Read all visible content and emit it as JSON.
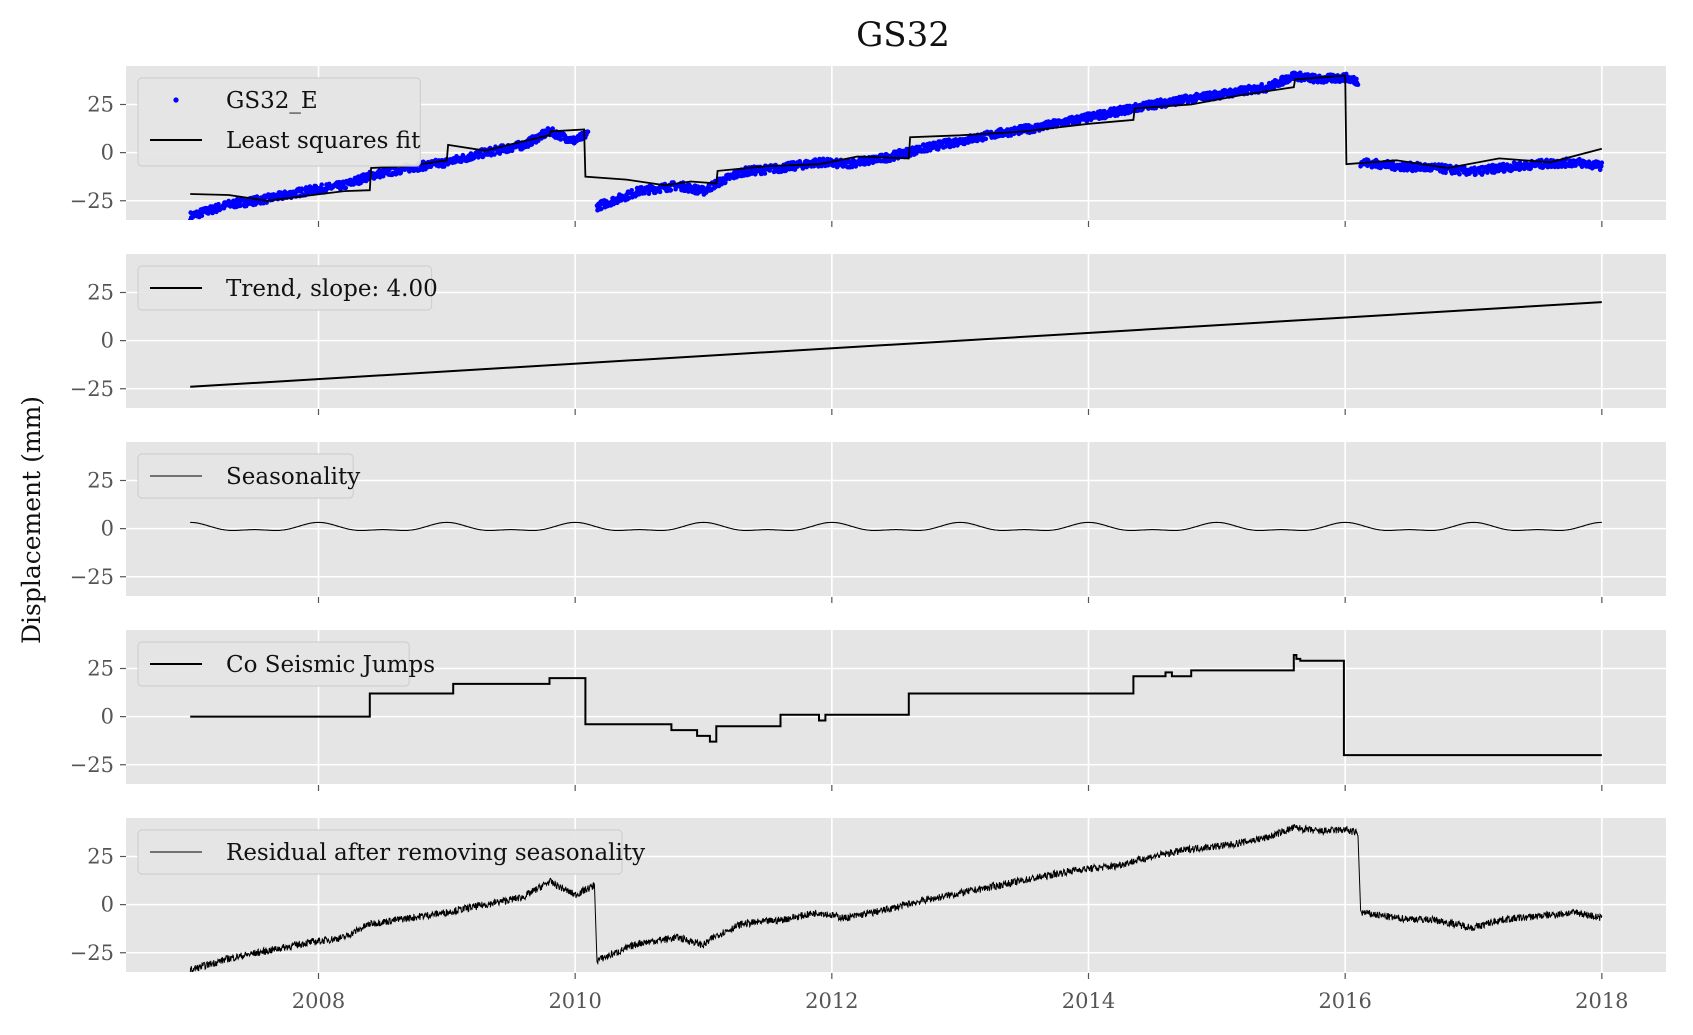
{
  "figure": {
    "title": "GS32",
    "ylabel": "Displacement (mm)",
    "xticks": [
      "2008",
      "2010",
      "2012",
      "2014",
      "2016",
      "2018"
    ],
    "yticks": [
      "25",
      "0",
      "−25"
    ],
    "colors": {
      "panel_background": "#e5e5e5",
      "grid": "#ffffff",
      "observations": "#0000ff",
      "line": "#000000"
    }
  },
  "chart_data": [
    {
      "type": "scatter",
      "name": "observations-fit",
      "xlim": [
        2006.5,
        2018.5
      ],
      "ylim": [
        -35,
        45
      ],
      "grid": true,
      "legend_placement": "upper-left",
      "series": [
        {
          "name": "GS32_E",
          "kind": "scatter",
          "segments": [
            {
              "x": [
                2007.0,
                2007.3,
                2007.6,
                2007.9,
                2008.2,
                2008.4,
                2008.7,
                2009.0,
                2009.3,
                2009.6,
                2009.8,
                2010.0,
                2010.1
              ],
              "y": [
                -33,
                -27,
                -24,
                -20,
                -17,
                -12,
                -8,
                -5,
                0,
                4,
                11,
                6,
                10
              ]
            },
            {
              "x": [
                2010.17,
                2010.5,
                2010.8,
                2011.0,
                2011.1,
                2011.3,
                2011.6,
                2011.9,
                2012.1,
                2012.4,
                2012.7,
                2013.0,
                2013.3,
                2013.6,
                2013.9,
                2014.2,
                2014.5,
                2014.8,
                2015.1,
                2015.4,
                2015.6,
                2015.8,
                2016.0,
                2016.1
              ],
              "y": [
                -28,
                -20,
                -17,
                -20,
                -16,
                -10,
                -8,
                -5,
                -6,
                -3,
                2,
                6,
                10,
                13,
                17,
                21,
                25,
                28,
                31,
                34,
                40,
                38,
                39,
                37
              ]
            },
            {
              "x": [
                2016.12,
                2016.4,
                2016.7,
                2017.0,
                2017.2,
                2017.5,
                2017.8,
                2018.0
              ],
              "y": [
                -5,
                -7,
                -8,
                -10,
                -8,
                -6,
                -5,
                -7
              ]
            }
          ]
        },
        {
          "name": "Least squares fit",
          "kind": "line",
          "x": [
            2007.0,
            2007.3,
            2007.6,
            2007.9,
            2008.2,
            2008.4,
            2008.41,
            2008.7,
            2009.0,
            2009.01,
            2009.3,
            2009.6,
            2009.8,
            2009.81,
            2010.07,
            2010.08,
            2010.4,
            2010.7,
            2010.9,
            2011.1,
            2011.11,
            2011.5,
            2011.9,
            2012.2,
            2012.6,
            2012.61,
            2013.0,
            2013.5,
            2014.0,
            2014.35,
            2014.36,
            2014.8,
            2015.2,
            2015.6,
            2015.61,
            2016.0,
            2016.01,
            2016.4,
            2016.8,
            2017.2,
            2017.6,
            2018.0
          ],
          "y": [
            -21.5,
            -22,
            -25,
            -22.5,
            -20,
            -19.5,
            -8,
            -7,
            -4,
            4,
            1,
            6,
            9,
            11,
            12,
            -12.5,
            -14,
            -17,
            -15,
            -16,
            -9.5,
            -7,
            -6,
            -2,
            -3,
            8,
            9,
            11,
            15,
            17,
            23,
            25,
            30,
            34,
            38,
            40,
            -6,
            -4,
            -8,
            -3,
            -5,
            2
          ]
        }
      ]
    },
    {
      "type": "line",
      "name": "trend",
      "xlim": [
        2006.5,
        2018.5
      ],
      "ylim": [
        -35,
        45
      ],
      "grid": true,
      "legend_placement": "upper-left",
      "series": [
        {
          "name": "Trend, slope: 4.00",
          "x": [
            2007.0,
            2018.0
          ],
          "y": [
            -24,
            20
          ]
        }
      ]
    },
    {
      "type": "line",
      "name": "seasonality",
      "xlim": [
        2006.5,
        2018.5
      ],
      "ylim": [
        -35,
        45
      ],
      "grid": true,
      "legend_placement": "upper-left",
      "series": [
        {
          "name": "Seasonality",
          "function": "periodic",
          "x_start": 2007.0,
          "x_end": 2018.0,
          "period_years": 1,
          "peak": 3,
          "trough": -2
        }
      ]
    },
    {
      "type": "line",
      "name": "co-seismic-jumps",
      "xlim": [
        2006.5,
        2018.5
      ],
      "ylim": [
        -35,
        45
      ],
      "grid": true,
      "legend_placement": "upper-left",
      "series": [
        {
          "name": "Co Seismic Jumps",
          "step": true,
          "x": [
            2007.0,
            2008.4,
            2009.05,
            2009.8,
            2010.08,
            2010.75,
            2010.95,
            2011.05,
            2011.1,
            2011.6,
            2011.9,
            2011.95,
            2012.6,
            2014.35,
            2014.6,
            2014.65,
            2014.8,
            2015.6,
            2015.62,
            2015.65,
            2015.99,
            2018.0
          ],
          "y": [
            0,
            12,
            17,
            20,
            -4,
            -7,
            -10,
            -13,
            -5,
            1,
            -2,
            1,
            12,
            21,
            23,
            21,
            24,
            32,
            30,
            29,
            -20,
            -20
          ]
        }
      ]
    },
    {
      "type": "line",
      "name": "residual",
      "xlim": [
        2006.5,
        2018.5
      ],
      "ylim": [
        -35,
        45
      ],
      "grid": true,
      "legend_placement": "upper-left",
      "series": [
        {
          "name": "Residual after removing seasonality",
          "segments": [
            {
              "x": [
                2007.0,
                2007.3,
                2007.6,
                2007.9,
                2008.2,
                2008.4,
                2008.7,
                2009.0,
                2009.3,
                2009.6,
                2009.8,
                2010.0,
                2010.15
              ],
              "y": [
                -34,
                -28,
                -24,
                -20,
                -17,
                -10,
                -7,
                -4,
                0,
                4,
                12,
                5,
                10
              ]
            },
            {
              "x": [
                2010.17,
                2010.5,
                2010.8,
                2011.0,
                2011.1,
                2011.3,
                2011.6,
                2011.9,
                2012.1,
                2012.4,
                2012.7,
                2013.0,
                2013.3,
                2013.6,
                2013.9,
                2014.2,
                2014.5,
                2014.8,
                2015.1,
                2015.4,
                2015.6,
                2015.8,
                2016.0,
                2016.1
              ],
              "y": [
                -29,
                -20,
                -17,
                -21,
                -16,
                -10,
                -8,
                -4,
                -7,
                -3,
                2,
                6,
                10,
                14,
                18,
                20,
                25,
                29,
                31,
                35,
                40,
                38,
                39,
                37
              ]
            },
            {
              "x": [
                2016.12,
                2016.4,
                2016.7,
                2017.0,
                2017.2,
                2017.5,
                2017.8,
                2018.0
              ],
              "y": [
                -4,
                -7,
                -8,
                -12,
                -8,
                -6,
                -4,
                -7
              ]
            }
          ]
        }
      ]
    }
  ]
}
